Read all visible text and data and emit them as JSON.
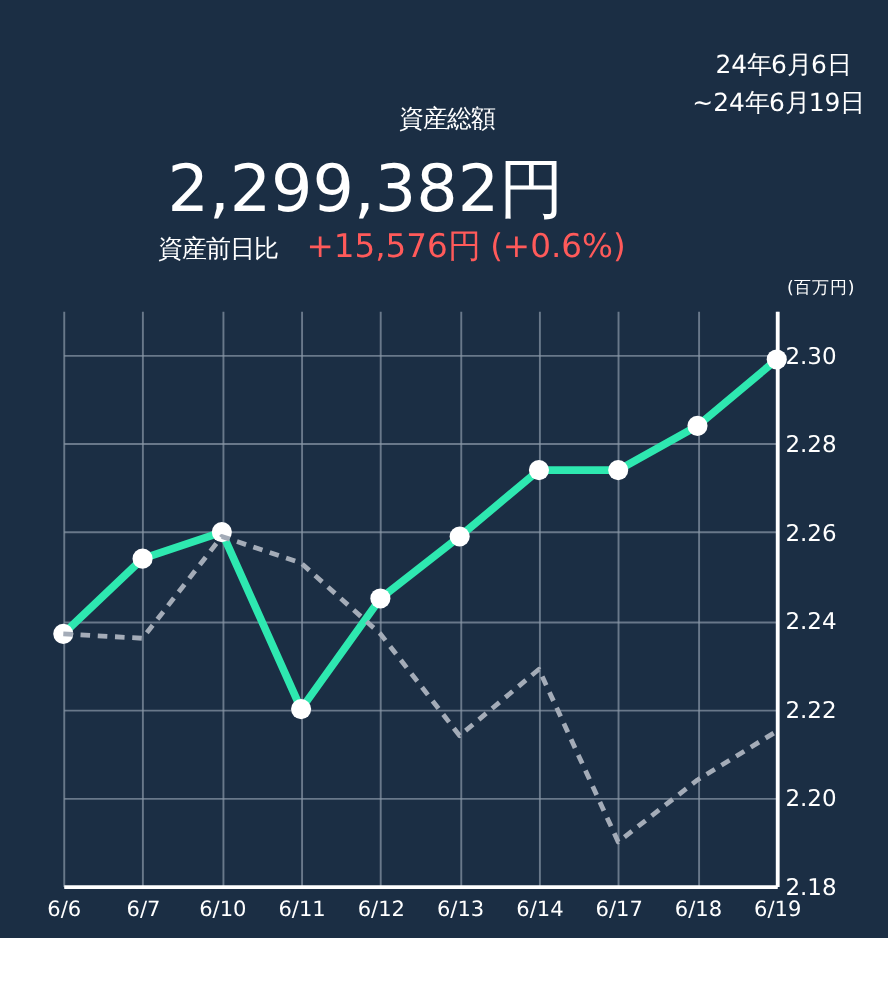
{
  "chart_data": {
    "type": "line",
    "title": "資産総額",
    "annotations": [
      "24年6月6日",
      "~24年6月19日",
      "2,299,382円",
      "資産前日比",
      "+15,576円 (+0.6%)"
    ],
    "ylabel": "(百万円)",
    "categories": [
      "6/6",
      "6/7",
      "6/10",
      "6/11",
      "6/12",
      "6/13",
      "6/14",
      "6/17",
      "6/18",
      "6/19"
    ],
    "series": [
      {
        "color": "#2ee8b0",
        "marker": "circle",
        "line_style": "solid",
        "values": [
          2.237,
          2.254,
          2.26,
          2.22,
          2.245,
          2.259,
          2.274,
          2.274,
          2.284,
          2.299
        ]
      },
      {
        "color": "#a4acb8",
        "marker": "none",
        "line_style": "dashed",
        "values": [
          2.237,
          2.236,
          2.259,
          2.253,
          2.237,
          2.214,
          2.229,
          2.19,
          2.204,
          2.215
        ]
      }
    ],
    "ylim": [
      2.18,
      2.31
    ],
    "yticks": [
      {
        "value": 2.18,
        "label": "2.18"
      },
      {
        "value": 2.2,
        "label": "2.20"
      },
      {
        "value": 2.22,
        "label": "2.22"
      },
      {
        "value": 2.24,
        "label": "2.24"
      },
      {
        "value": 2.26,
        "label": "2.26"
      },
      {
        "value": 2.28,
        "label": "2.28"
      },
      {
        "value": 2.3,
        "label": "2.30"
      }
    ],
    "grid": true
  }
}
